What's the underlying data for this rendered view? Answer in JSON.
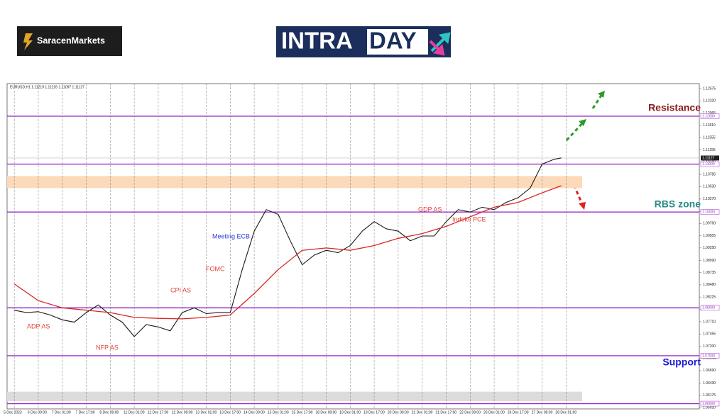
{
  "logos": {
    "saracen": "SaracenMarkets",
    "intra": "INTRA",
    "day": "DAY"
  },
  "chart_data": {
    "type": "line",
    "header": "EURUSD,H1  1.11219 1.11226 1.11097 1.11127",
    "xlim": [
      -0.3,
      28.55
    ],
    "xticks": [
      {
        "value": 0,
        "label": "5 Dec 2023"
      },
      {
        "value": 1,
        "label": "6 Dec 09:00"
      },
      {
        "value": 2,
        "label": "7 Dec 01:00"
      },
      {
        "value": 3,
        "label": "7 Dec 17:00"
      },
      {
        "value": 4,
        "label": "8 Dec 09:00"
      },
      {
        "value": 5,
        "label": "11 Dec 01:00"
      },
      {
        "value": 6,
        "label": "11 Dec 17:00"
      },
      {
        "value": 7,
        "label": "12 Dec 09:00"
      },
      {
        "value": 8,
        "label": "13 Dec 01:00"
      },
      {
        "value": 9,
        "label": "13 Dec 17:00"
      },
      {
        "value": 10,
        "label": "14 Dec 09:00"
      },
      {
        "value": 11,
        "label": "15 Dec 01:00"
      },
      {
        "value": 12,
        "label": "15 Dec 17:00"
      },
      {
        "value": 13,
        "label": "18 Dec 09:00"
      },
      {
        "value": 14,
        "label": "19 Dec 01:00"
      },
      {
        "value": 15,
        "label": "19 Dec 17:00"
      },
      {
        "value": 16,
        "label": "20 Dec 09:00"
      },
      {
        "value": 17,
        "label": "21 Dec 01:00"
      },
      {
        "value": 18,
        "label": "21 Dec 17:00"
      },
      {
        "value": 19,
        "label": "22 Dec 09:00"
      },
      {
        "value": 20,
        "label": "26 Dec 01:00"
      },
      {
        "value": 21,
        "label": "26 Dec 17:00"
      },
      {
        "value": 22,
        "label": "27 Dec 09:00"
      },
      {
        "value": 23,
        "label": "28 Dec 01:00"
      }
    ],
    "ylim": [
      1.0589,
      1.1268
    ],
    "yticks": [
      1.12575,
      {
        "value": 1.1232,
        "label": "1.12320"
      },
      1.12065,
      {
        "value": 1.1181,
        "label": "1.11810"
      },
      1.11555,
      1.11295,
      {
        "value": 1.1104,
        "label": "1.11040"
      },
      1.10785,
      {
        "value": 1.1053,
        "label": "1.10530"
      },
      {
        "value": 1.1027,
        "label": "1.10270"
      },
      1.10015,
      {
        "value": 1.0976,
        "label": "1.09760"
      },
      1.09505,
      {
        "value": 1.0925,
        "label": "1.09250"
      },
      {
        "value": 1.0899,
        "label": "1.08990"
      },
      1.08735,
      {
        "value": 1.0848,
        "label": "1.08480"
      },
      1.08225,
      {
        "value": 1.0797,
        "label": "1.07970"
      },
      {
        "value": 1.0771,
        "label": "1.07710"
      },
      1.07455,
      {
        "value": 1.072,
        "label": "1.07200"
      },
      1.06945,
      {
        "value": 1.0669,
        "label": "1.06690"
      },
      {
        "value": 1.0643,
        "label": "1.06430"
      },
      1.06175,
      {
        "value": 1.0592,
        "label": "1.05920"
      }
    ],
    "grid": true,
    "levels": [
      {
        "value": 1.12,
        "label": "1.12000"
      },
      {
        "value": 1.11,
        "label": "1.11000"
      },
      {
        "value": 1.1,
        "label": "1.10000"
      },
      {
        "value": 1.08,
        "label": "1.08000"
      },
      {
        "value": 1.07,
        "label": "1.07000"
      },
      {
        "value": 1.06,
        "label": "1.06000"
      }
    ],
    "level_color": "#9b30c8",
    "price_tag": {
      "value": 1.11127,
      "label": "1.11127"
    },
    "zones": [
      {
        "range": [
          1.105,
          1.1075
        ],
        "color": "#fcd9b8"
      },
      {
        "range": [
          1.0605,
          1.0625
        ],
        "color": "#dcdcdc"
      }
    ],
    "series": [
      {
        "color": "#1a1a1a",
        "x": [
          0,
          0.5,
          1,
          1.5,
          2,
          2.5,
          3,
          3.5,
          4,
          4.5,
          5,
          5.5,
          6,
          6.5,
          7,
          7.5,
          8,
          8.5,
          9,
          9.5,
          10,
          10.5,
          11,
          11.5,
          12,
          12.5,
          13,
          13.5,
          14,
          14.5,
          15,
          15.5,
          16,
          16.5,
          17,
          17.5,
          18,
          18.5,
          19,
          19.5,
          20,
          20.5,
          21,
          21.5,
          22,
          22.5,
          22.8
        ],
        "values": [
          1.0795,
          1.079,
          1.0792,
          1.0785,
          1.0775,
          1.077,
          1.079,
          1.0806,
          1.0785,
          1.077,
          1.074,
          1.0765,
          1.076,
          1.0752,
          1.079,
          1.08,
          1.0788,
          1.079,
          1.079,
          1.088,
          1.096,
          1.1005,
          1.0995,
          1.094,
          1.089,
          1.091,
          1.092,
          1.0915,
          1.093,
          1.096,
          1.098,
          1.0965,
          1.096,
          1.094,
          1.095,
          1.095,
          1.098,
          1.1005,
          1.1,
          1.101,
          1.1005,
          1.102,
          1.103,
          1.105,
          1.11,
          1.111,
          1.1113
        ]
      },
      {
        "color": "#d62728",
        "x": [
          0,
          1,
          2,
          3,
          4,
          5,
          6,
          7,
          8,
          9,
          10,
          11,
          12,
          13,
          14,
          15,
          16,
          17,
          18,
          19,
          20,
          21,
          22,
          22.8
        ],
        "values": [
          1.085,
          1.0815,
          1.08,
          1.0795,
          1.079,
          1.078,
          1.0778,
          1.0777,
          1.078,
          1.0785,
          1.083,
          1.088,
          1.092,
          1.0925,
          1.092,
          1.093,
          1.0945,
          1.0955,
          1.097,
          1.099,
          1.101,
          1.102,
          1.104,
          1.1055
        ]
      }
    ],
    "annotations": [
      {
        "text": "ADP AS",
        "color": "#e0443a"
      },
      {
        "text": "NFP AS",
        "color": "#e0443a"
      },
      {
        "text": "CPI AS",
        "color": "#e0443a"
      },
      {
        "text": "FOMC",
        "color": "#e0443a"
      },
      {
        "text": "Meeting ECB",
        "color": "#2a3ad6"
      },
      {
        "text": "GDP AS",
        "color": "#e0443a"
      },
      {
        "text": "Indeks PCE",
        "color": "#e0443a"
      }
    ],
    "zone_labels": [
      {
        "text": "Resistance",
        "color": "#8b1a1a"
      },
      {
        "text": "RBS zone",
        "color": "#2a8a8a"
      },
      {
        "text": "Support",
        "color": "#1a1ad6"
      }
    ]
  }
}
